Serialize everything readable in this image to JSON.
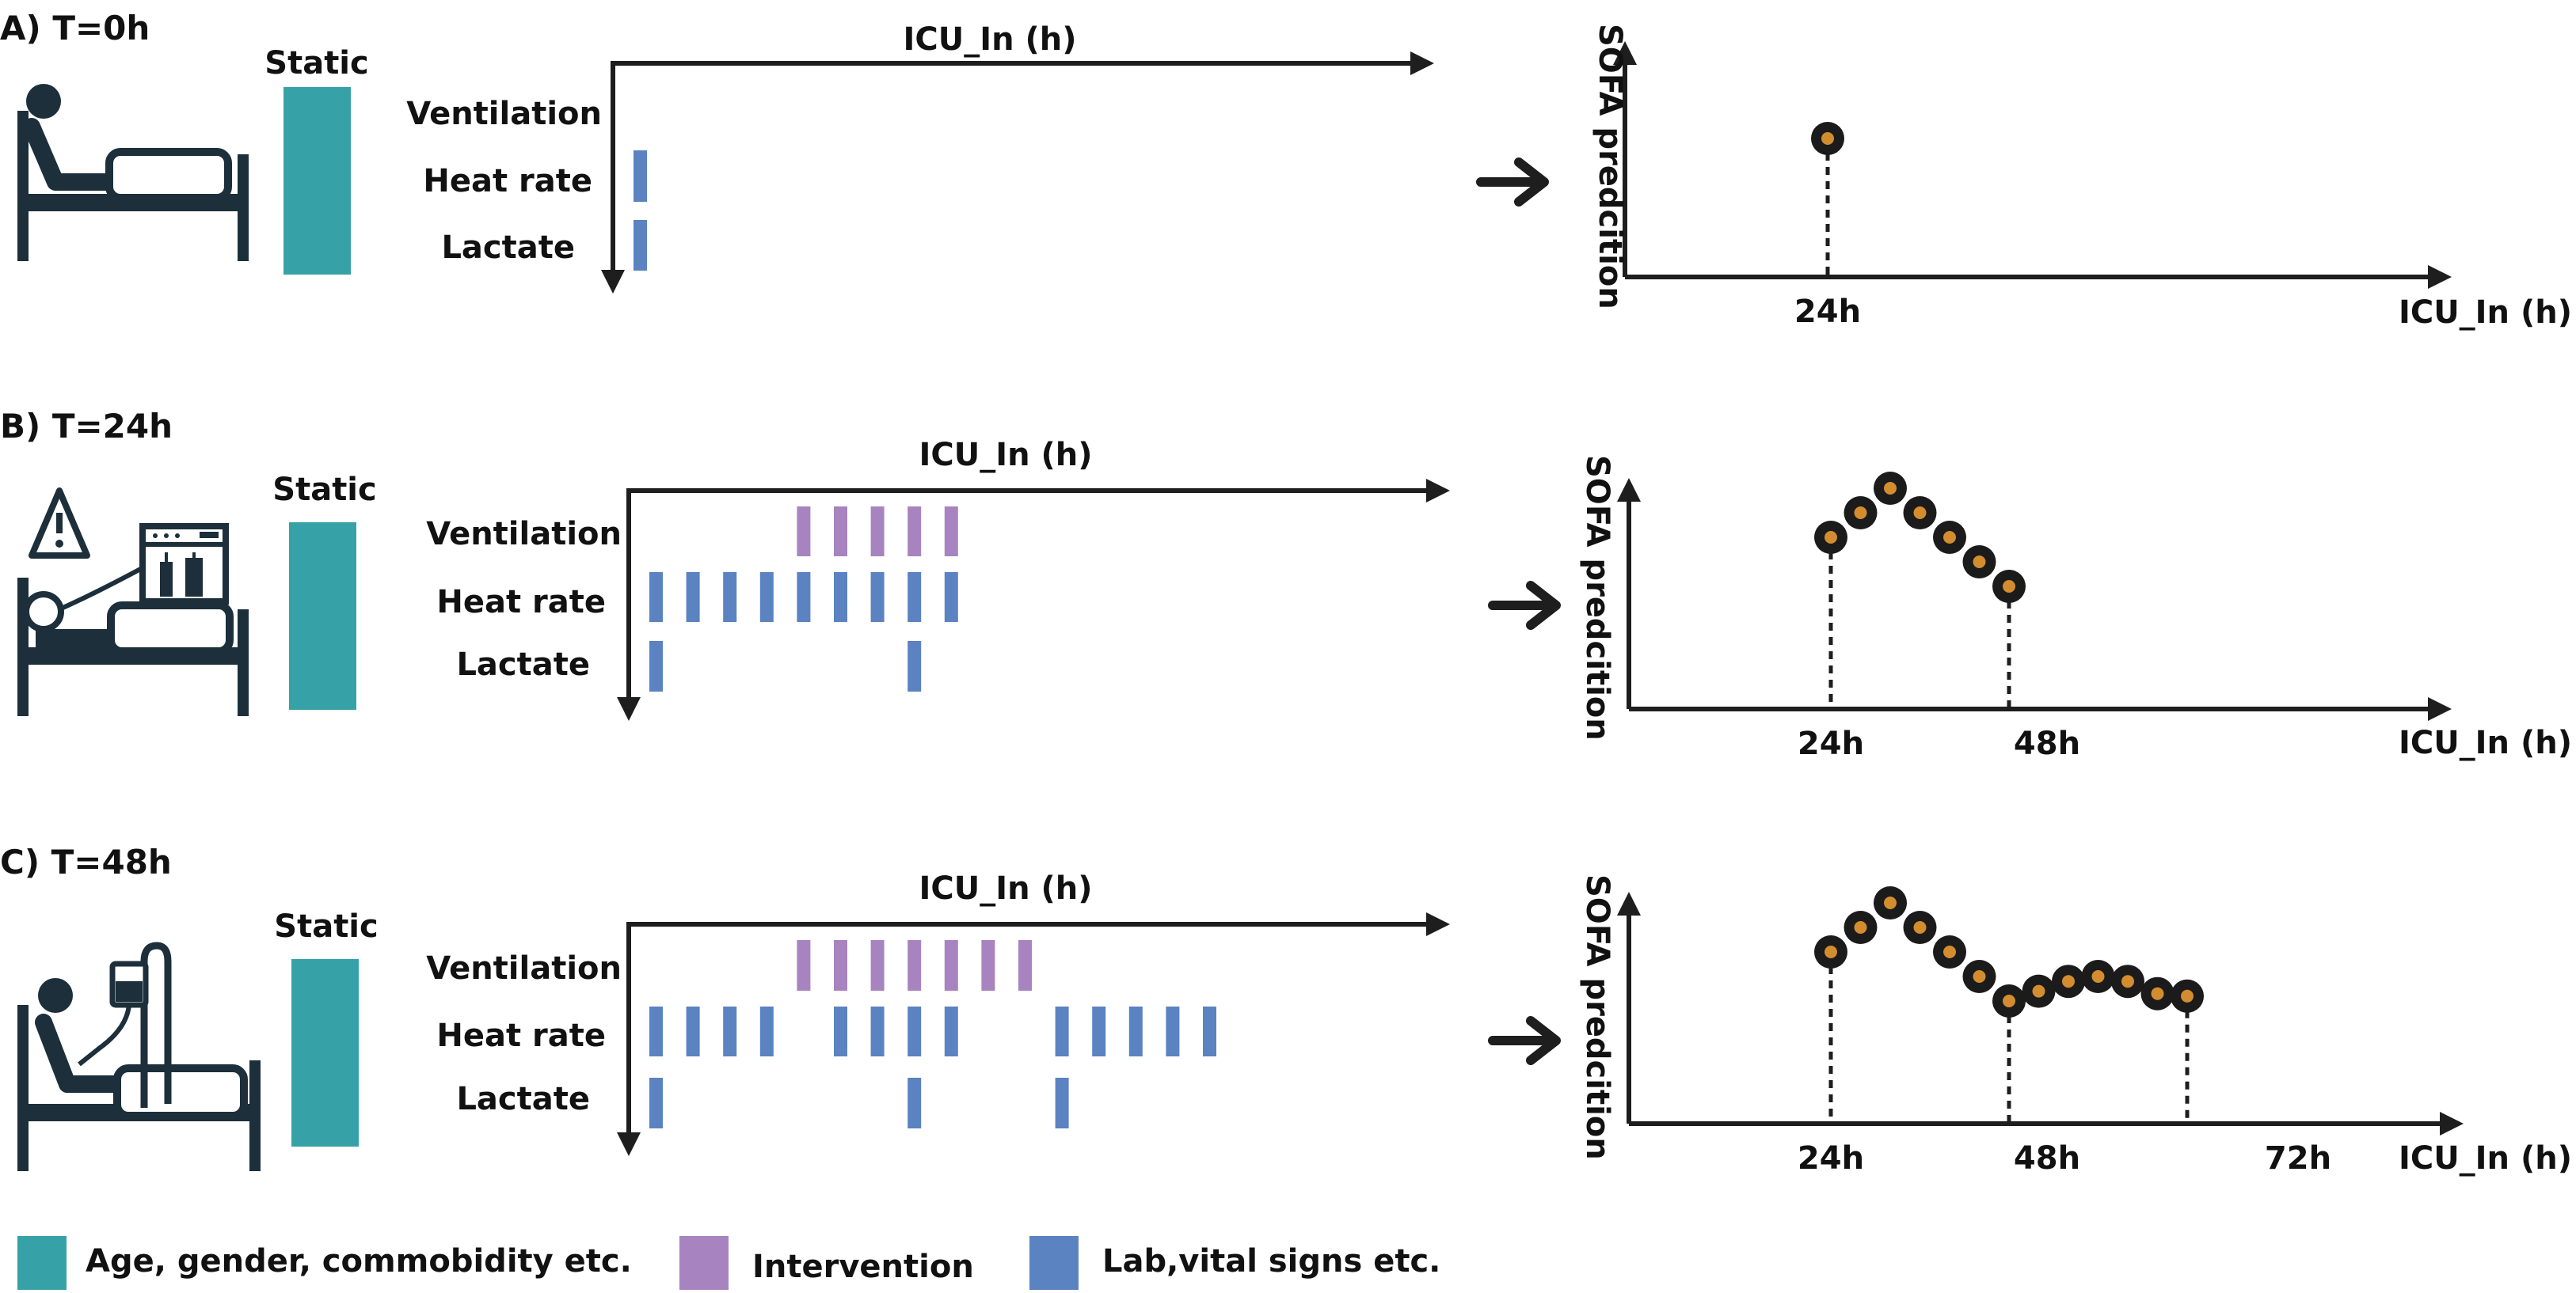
{
  "colors": {
    "static": "#36a2a8",
    "intervention": "#a784bf",
    "lab": "#5b82c1",
    "axis": "#1e1e1e",
    "icon": "#1c2f3a",
    "dot_outer": "#1b1b1b",
    "dot_inner": "#d38d2f"
  },
  "common": {
    "static_label": "Static",
    "time_axis_label": "ICU_In (h)",
    "pred_y_label": "SOFA predcition",
    "pred_x_label": "ICU_In (h)",
    "rows": {
      "ventilation": "Ventilation",
      "heart": "Heat rate",
      "lactate": "Lactate"
    }
  },
  "panels": [
    {
      "title": "A) T=0h",
      "icon": "patient-in-bed-icon",
      "interventions": {
        "ventilation": [],
        "heart": [
          0
        ],
        "lactate": [
          0
        ]
      },
      "prediction": {
        "ticks": [
          "24h"
        ],
        "sofa_points": [
          1.0
        ],
        "start_tick": 0
      }
    },
    {
      "title": "B) T=24h",
      "icon": "patient-ventilator-warning-icon",
      "interventions": {
        "ventilation": [
          4,
          5,
          6,
          7,
          8
        ],
        "heart": [
          0,
          1,
          2,
          3,
          4,
          5,
          6,
          7,
          8
        ],
        "lactate": [
          0,
          7
        ]
      },
      "prediction": {
        "ticks": [
          "24h",
          "48h"
        ],
        "sofa_points": [
          0.7,
          0.8,
          0.9,
          0.8,
          0.7,
          0.6,
          0.5
        ]
      }
    },
    {
      "title": "C) T=48h",
      "icon": "patient-iv-drip-icon",
      "interventions": {
        "ventilation": [
          4,
          5,
          6,
          7,
          8,
          9,
          10
        ],
        "heart": [
          0,
          1,
          2,
          3,
          5,
          6,
          7,
          8,
          11,
          12,
          13,
          14,
          15
        ],
        "lactate": [
          0,
          7,
          11
        ]
      },
      "prediction": {
        "ticks": [
          "24h",
          "48h",
          "72h"
        ],
        "sofa_points": [
          0.7,
          0.8,
          0.9,
          0.8,
          0.7,
          0.6,
          0.5,
          0.54,
          0.58,
          0.6,
          0.58,
          0.53,
          0.52
        ]
      }
    }
  ],
  "legend": [
    {
      "label": "Age, gender, commobidity etc.",
      "color_key": "static"
    },
    {
      "label": "Intervention",
      "color_key": "intervention"
    },
    {
      "label": "Lab,vital signs etc.",
      "color_key": "lab"
    }
  ]
}
